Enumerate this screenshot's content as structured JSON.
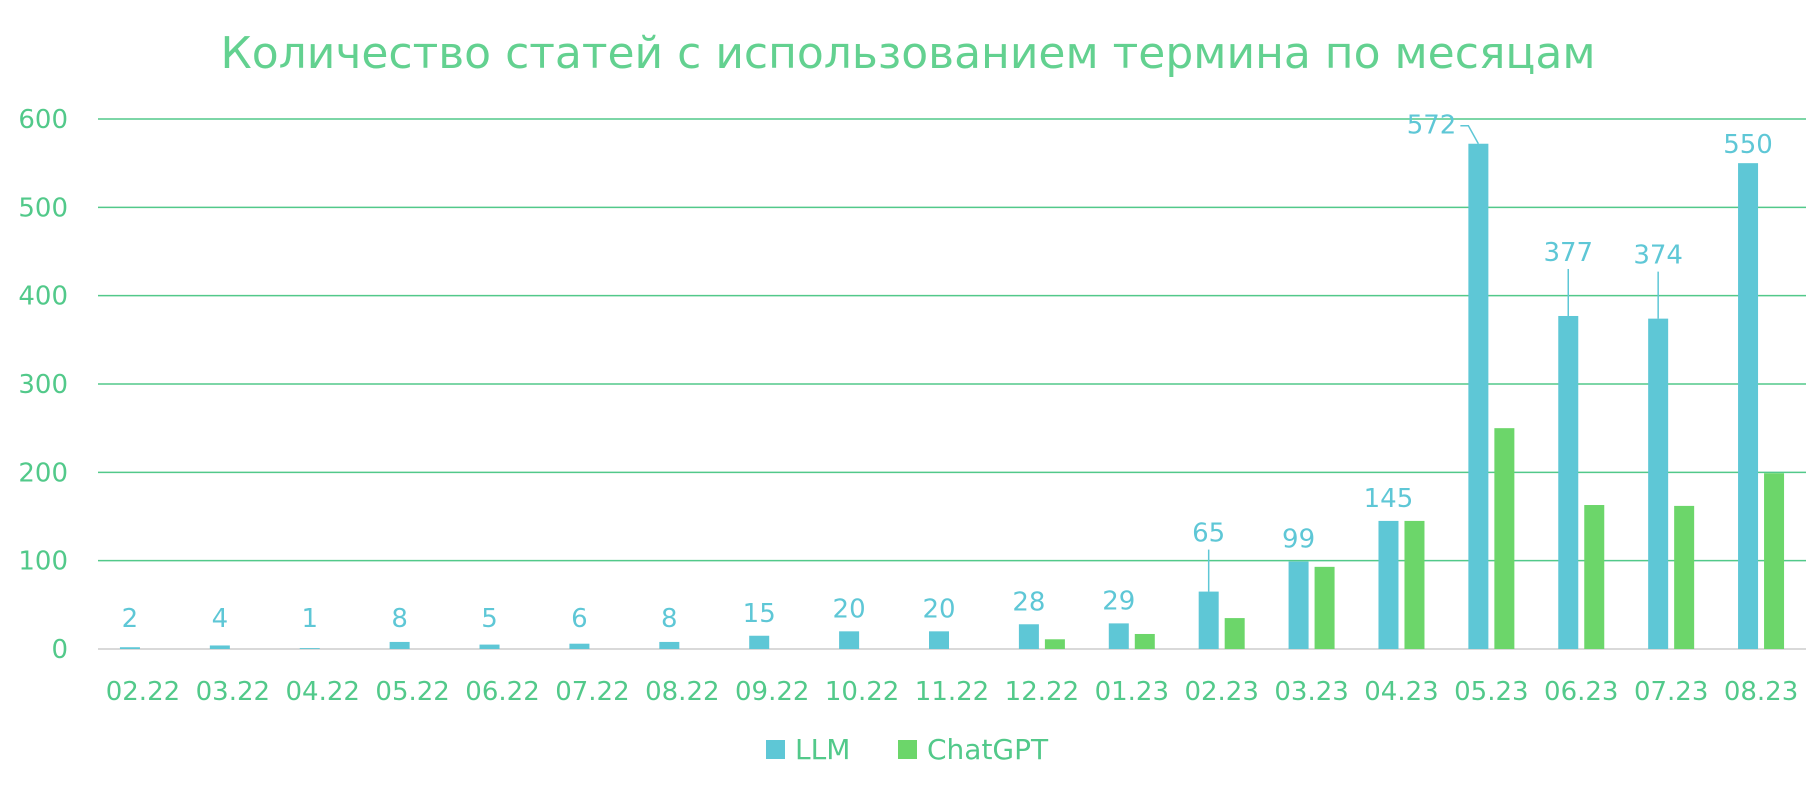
{
  "chart_data": {
    "type": "bar",
    "title": "Количество статей с использованием термина по месяцам",
    "xlabel": "",
    "ylabel": "",
    "categories": [
      "02.22",
      "03.22",
      "04.22",
      "05.22",
      "06.22",
      "07.22",
      "08.22",
      "09.22",
      "10.22",
      "11.22",
      "12.22",
      "01.23",
      "02.23",
      "03.23",
      "04.23",
      "05.23",
      "06.23",
      "07.23",
      "08.23"
    ],
    "series": [
      {
        "name": "LLM",
        "color": "#5ec7d6",
        "values": [
          2,
          4,
          1,
          8,
          5,
          6,
          8,
          15,
          20,
          20,
          28,
          29,
          65,
          99,
          145,
          572,
          377,
          374,
          550
        ],
        "labels": [
          "2",
          "4",
          "1",
          "8",
          "5",
          "6",
          "8",
          "15",
          "20",
          "20",
          "28",
          "29",
          "65",
          "99",
          "145",
          "572",
          "377",
          "374",
          "550"
        ]
      },
      {
        "name": "ChatGPT",
        "color": "#6cd66a",
        "values": [
          0,
          0,
          0,
          0,
          0,
          0,
          0,
          0,
          0,
          0,
          11,
          17,
          35,
          93,
          145,
          250,
          163,
          162,
          199
        ]
      }
    ],
    "yticks": [
      "0",
      "100",
      "200",
      "300",
      "400",
      "500",
      "600"
    ],
    "ylim": [
      0,
      600
    ],
    "grid": true,
    "legend": "bottom-center",
    "gridColor": "#52c98a",
    "axisColor": "#d9d9d9"
  }
}
